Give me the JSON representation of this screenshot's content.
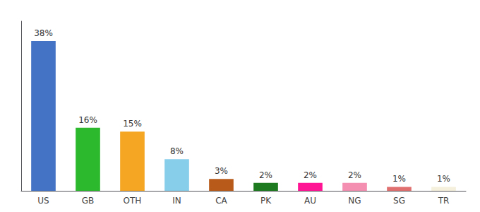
{
  "chart_data": {
    "type": "bar",
    "categories": [
      "US",
      "GB",
      "OTH",
      "IN",
      "CA",
      "PK",
      "AU",
      "NG",
      "SG",
      "TR"
    ],
    "values": [
      38,
      16,
      15,
      8,
      3,
      2,
      2,
      2,
      1,
      1
    ],
    "value_labels": [
      "38%",
      "16%",
      "15%",
      "8%",
      "3%",
      "2%",
      "2%",
      "2%",
      "1%",
      "1%"
    ],
    "colors": [
      "#4472c4",
      "#2db92d",
      "#f5a623",
      "#87ceeb",
      "#b85a1a",
      "#1e7a1e",
      "#ff1493",
      "#f48fb1",
      "#e07070",
      "#f5f0dc"
    ],
    "ylim": [
      0,
      43
    ],
    "data_labels": true,
    "tick_labels": "x",
    "grid": false
  }
}
